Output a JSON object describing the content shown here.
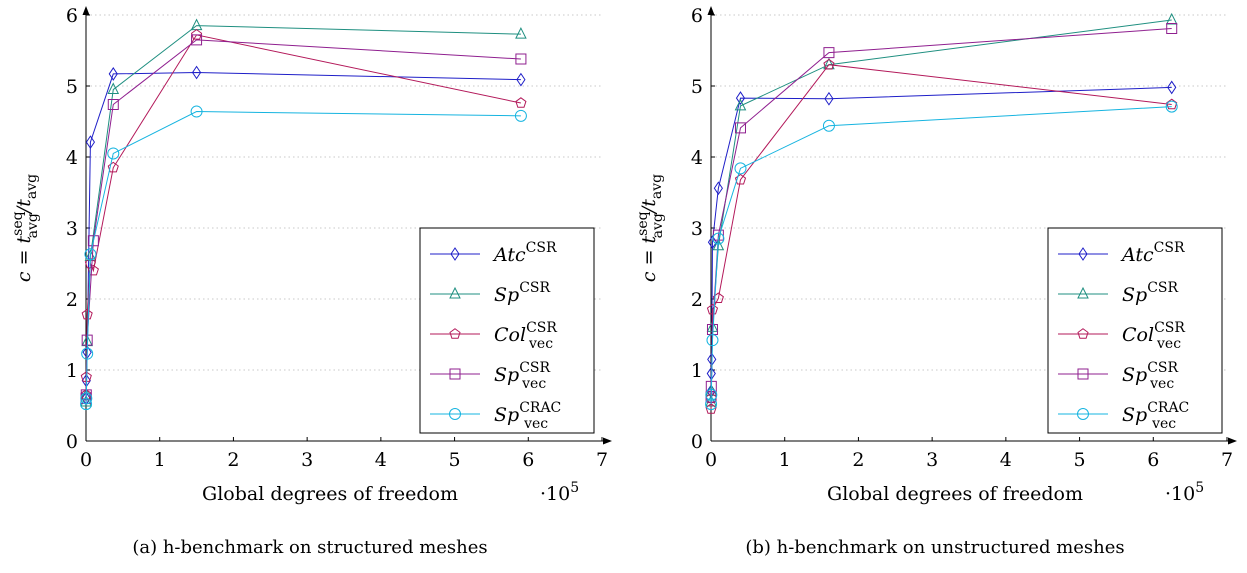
{
  "charts": [
    {
      "caption": "(a) h-benchmark on structured meshes",
      "xlabel": "Global degrees of freedom",
      "xmult": "·10",
      "xmult_exp": "5",
      "ylabel": {
        "lhs": "c = t",
        "sup1": "seq",
        "sub1": "avg",
        "mid": "/t",
        "sub2": "avg"
      },
      "xticks": [
        "0",
        "1",
        "2",
        "3",
        "4",
        "5",
        "6",
        "7"
      ],
      "yticks": [
        "0",
        "1",
        "2",
        "3",
        "4",
        "5",
        "6"
      ]
    },
    {
      "caption": "(b) h-benchmark on unstructured meshes",
      "xlabel": "Global degrees of freedom",
      "xmult": "·10",
      "xmult_exp": "5",
      "ylabel": {
        "lhs": "c = t",
        "sup1": "seq",
        "sub1": "avg",
        "mid": "/t",
        "sub2": "avg"
      },
      "xticks": [
        "0",
        "1",
        "2",
        "3",
        "4",
        "5",
        "6",
        "7"
      ],
      "yticks": [
        "0",
        "1",
        "2",
        "3",
        "4",
        "5",
        "6"
      ]
    }
  ],
  "legend": [
    {
      "base": "Atc",
      "sup": "CSR",
      "sub": ""
    },
    {
      "base": "Sp",
      "sup": "CSR",
      "sub": ""
    },
    {
      "base": "Col",
      "sup": "CSR",
      "sub": "vec"
    },
    {
      "base": "Sp",
      "sup": "CSR",
      "sub": "vec"
    },
    {
      "base": "Sp",
      "sup": "CRAC",
      "sub": "vec"
    }
  ],
  "chart_data": [
    {
      "type": "line",
      "xlim": [
        0,
        7
      ],
      "ylim": [
        0,
        6
      ],
      "x_scale_factor": "1e5",
      "grid": "horizontal dotted",
      "legend_position": "bottom-right",
      "series": [
        {
          "color": "#1f1fc8",
          "marker": "diamond",
          "x": [
            0.001,
            0.004,
            0.016,
            0.06,
            0.37,
            1.5,
            5.9
          ],
          "y": [
            0.6,
            0.85,
            1.25,
            4.21,
            5.17,
            5.19,
            5.09
          ]
        },
        {
          "color": "#1f8f80",
          "marker": "triangle",
          "x": [
            0.001,
            0.004,
            0.016,
            0.06,
            0.37,
            1.5,
            5.9
          ],
          "y": [
            0.55,
            0.65,
            1.4,
            2.6,
            4.95,
            5.85,
            5.73
          ]
        },
        {
          "color": "#b3195a",
          "marker": "pentagon",
          "x": [
            0.001,
            0.004,
            0.016,
            0.06,
            0.1,
            0.37,
            1.5,
            5.9
          ],
          "y": [
            0.65,
            0.9,
            1.78,
            2.5,
            2.4,
            3.85,
            5.72,
            4.76
          ]
        },
        {
          "color": "#8f1f8f",
          "marker": "square",
          "x": [
            0.001,
            0.004,
            0.016,
            0.1,
            0.37,
            1.5,
            5.9
          ],
          "y": [
            0.6,
            0.65,
            1.42,
            2.82,
            4.74,
            5.65,
            5.38
          ]
        },
        {
          "color": "#16b4e0",
          "marker": "circle",
          "x": [
            0.001,
            0.004,
            0.016,
            0.06,
            0.37,
            1.5,
            5.9
          ],
          "y": [
            0.52,
            0.6,
            1.23,
            2.63,
            4.05,
            4.64,
            4.58
          ]
        }
      ]
    },
    {
      "type": "line",
      "xlim": [
        0,
        7
      ],
      "ylim": [
        0,
        6
      ],
      "x_scale_factor": "1e5",
      "grid": "horizontal dotted",
      "legend_position": "bottom-right",
      "series": [
        {
          "color": "#1f1fc8",
          "marker": "diamond",
          "x": [
            0.001,
            0.004,
            0.01,
            0.02,
            0.1,
            0.4,
            1.6,
            6.25
          ],
          "y": [
            0.7,
            0.95,
            1.15,
            2.8,
            3.56,
            4.83,
            4.82,
            4.98
          ]
        },
        {
          "color": "#1f8f80",
          "marker": "triangle",
          "x": [
            0.001,
            0.004,
            0.02,
            0.1,
            0.4,
            1.6,
            6.25
          ],
          "y": [
            0.55,
            0.7,
            1.6,
            2.75,
            4.72,
            5.3,
            5.93
          ]
        },
        {
          "color": "#b3195a",
          "marker": "pentagon",
          "x": [
            0.001,
            0.004,
            0.02,
            0.1,
            0.4,
            1.6,
            6.25
          ],
          "y": [
            0.45,
            0.6,
            1.85,
            2.01,
            3.68,
            5.3,
            4.74
          ]
        },
        {
          "color": "#8f1f8f",
          "marker": "square",
          "x": [
            0.001,
            0.004,
            0.02,
            0.1,
            0.4,
            1.6,
            6.25
          ],
          "y": [
            0.62,
            0.77,
            1.57,
            2.9,
            4.41,
            5.47,
            5.81
          ]
        },
        {
          "color": "#16b4e0",
          "marker": "circle",
          "x": [
            0.001,
            0.004,
            0.02,
            0.1,
            0.4,
            1.6,
            6.25
          ],
          "y": [
            0.52,
            0.65,
            1.42,
            2.85,
            3.84,
            4.44,
            4.71
          ]
        }
      ]
    }
  ]
}
